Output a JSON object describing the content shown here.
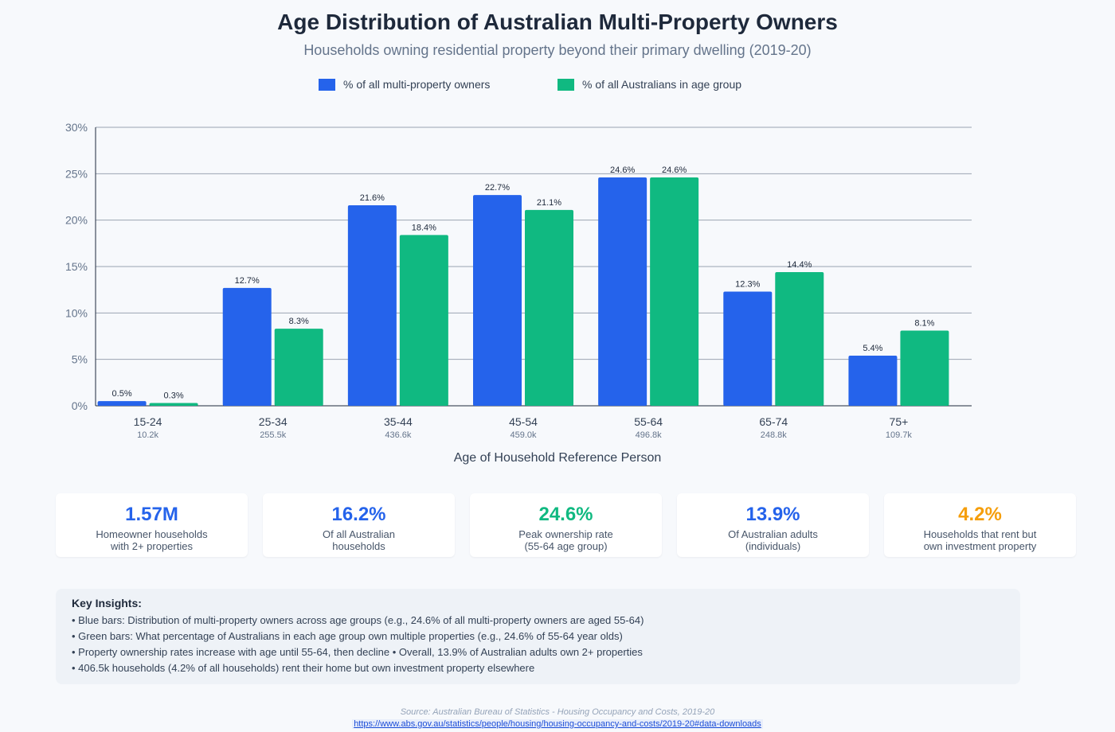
{
  "header": {
    "title": "Age Distribution of Australian Multi-Property Owners",
    "subtitle": "Households owning residential property beyond their primary dwelling (2019-20)"
  },
  "colors": {
    "blue": "#2563eb",
    "green": "#10b981",
    "orange": "#f59e0b",
    "grid": "#cbd5e1",
    "axis": "#1e293b"
  },
  "chart_data": {
    "type": "bar",
    "xlabel": "Age of Household Reference Person",
    "ylabel": "",
    "ylim": [
      0,
      30
    ],
    "yticks": [
      0,
      5,
      10,
      15,
      20,
      25,
      30
    ],
    "ytick_suffix": "%",
    "grid": true,
    "legend_position": "top",
    "categories": [
      "15-24",
      "25-34",
      "35-44",
      "45-54",
      "55-64",
      "65-74",
      "75+"
    ],
    "category_sublabels": [
      "10.2k",
      "255.5k",
      "436.6k",
      "459.0k",
      "496.8k",
      "248.8k",
      "109.7k"
    ],
    "series": [
      {
        "name": "% of all multi-property owners",
        "color": "#2563eb",
        "values": [
          0.5,
          12.7,
          21.6,
          22.7,
          24.6,
          12.3,
          5.4
        ]
      },
      {
        "name": "% of all Australians in age group",
        "color": "#10b981",
        "values": [
          0.3,
          8.3,
          18.4,
          21.1,
          24.6,
          14.4,
          8.1
        ]
      }
    ]
  },
  "stats": [
    {
      "value": "1.57M",
      "label_line1": "Homeowner households",
      "label_line2": "with 2+ properties",
      "color": "#2563eb"
    },
    {
      "value": "16.2%",
      "label_line1": "Of all Australian",
      "label_line2": "households",
      "color": "#2563eb"
    },
    {
      "value": "24.6%",
      "label_line1": "Peak ownership rate",
      "label_line2": "(55-64 age group)",
      "color": "#10b981"
    },
    {
      "value": "13.9%",
      "label_line1": "Of Australian adults",
      "label_line2": "(individuals)",
      "color": "#2563eb"
    },
    {
      "value": "4.2%",
      "label_line1": "Households that rent but",
      "label_line2": "own investment property",
      "color": "#f59e0b"
    }
  ],
  "insights": {
    "title": "Key Insights:",
    "lines": [
      "• Blue bars: Distribution of multi-property owners across age groups (e.g., 24.6% of all multi-property owners are aged 55-64)",
      "• Green bars: What percentage of Australians in each age group own multiple properties (e.g., 24.6% of 55-64 year olds)",
      "• Property ownership rates increase with age until 55-64, then decline • Overall, 13.9% of Australian adults own 2+ properties",
      "• 406.5k households (4.2% of all households) rent their home but own investment property elsewhere"
    ]
  },
  "source": {
    "text": "Source: Australian Bureau of Statistics - Housing Occupancy and Costs, 2019-20",
    "url": "https://www.abs.gov.au/statistics/people/housing/housing-occupancy-and-costs/2019-20#data-downloads"
  }
}
